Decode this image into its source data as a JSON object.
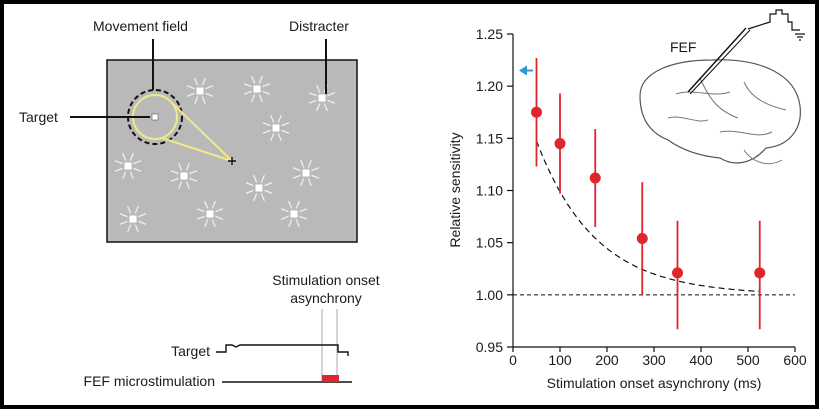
{
  "diagram": {
    "labels": {
      "movement_field": "Movement field",
      "distracter": "Distracter",
      "target": "Target",
      "stim_onset_line1": "Stimulation onset",
      "stim_onset_line2": "asynchrony",
      "timeline_target": "Target",
      "timeline_fef": "FEF microstimulation",
      "brain_fef": "FEF"
    },
    "colors": {
      "display_bg": "#b9b9b9",
      "movement_field_ring": "#f0e98a",
      "stim_pulse": "#e0252c"
    }
  },
  "chart_data": {
    "type": "scatter",
    "xlabel": "Stimulation onset asynchrony (ms)",
    "ylabel": "Relative sensitivity",
    "xlim": [
      0,
      600
    ],
    "ylim": [
      0.95,
      1.25
    ],
    "x_ticks": [
      0,
      100,
      200,
      300,
      400,
      500,
      600
    ],
    "y_ticks": [
      0.95,
      1.0,
      1.05,
      1.1,
      1.15,
      1.2,
      1.25
    ],
    "x_tick_labels": [
      "0",
      "100",
      "200",
      "300",
      "400",
      "500",
      "600"
    ],
    "y_tick_labels": [
      "0.95",
      "1.00",
      "1.05",
      "1.10",
      "1.15",
      "1.20",
      "1.25"
    ],
    "points": [
      {
        "x": 50,
        "y": 1.175,
        "lo": 1.123,
        "hi": 1.227
      },
      {
        "x": 100,
        "y": 1.145,
        "lo": 1.097,
        "hi": 1.193
      },
      {
        "x": 175,
        "y": 1.112,
        "lo": 1.065,
        "hi": 1.159
      },
      {
        "x": 275,
        "y": 1.054,
        "lo": 1.0,
        "hi": 1.108
      },
      {
        "x": 350,
        "y": 1.021,
        "lo": 0.967,
        "hi": 1.071
      },
      {
        "x": 525,
        "y": 1.021,
        "lo": 0.967,
        "hi": 1.071
      }
    ],
    "fit_curve": {
      "amplitude": 0.22,
      "tau": 125,
      "baseline": 1.0
    },
    "reference_line_y": 1.0,
    "arrow_y": 1.215,
    "colors": {
      "points": "#e0252c",
      "error_bars": "#e0252c",
      "arrow": "#2a9bd6"
    }
  }
}
